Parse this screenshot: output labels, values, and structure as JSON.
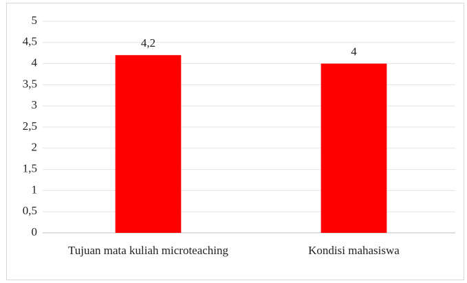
{
  "chart_data": {
    "type": "bar",
    "categories": [
      "Tujuan mata kuliah microteaching",
      "Kondisi mahasiswa"
    ],
    "values": [
      4.2,
      4
    ],
    "value_labels": [
      "4,2",
      "4"
    ],
    "color": "#ff0000",
    "ylim": [
      0,
      5
    ],
    "yticks": [
      0,
      {
        "value": 0.5,
        "label": "0,5"
      },
      1,
      {
        "value": 1.5,
        "label": "1,5"
      },
      2,
      {
        "value": 2.5,
        "label": "2,5"
      },
      3,
      {
        "value": 3.5,
        "label": "3,5"
      },
      4,
      {
        "value": 4.5,
        "label": "4,5"
      },
      5
    ],
    "grid": true
  }
}
